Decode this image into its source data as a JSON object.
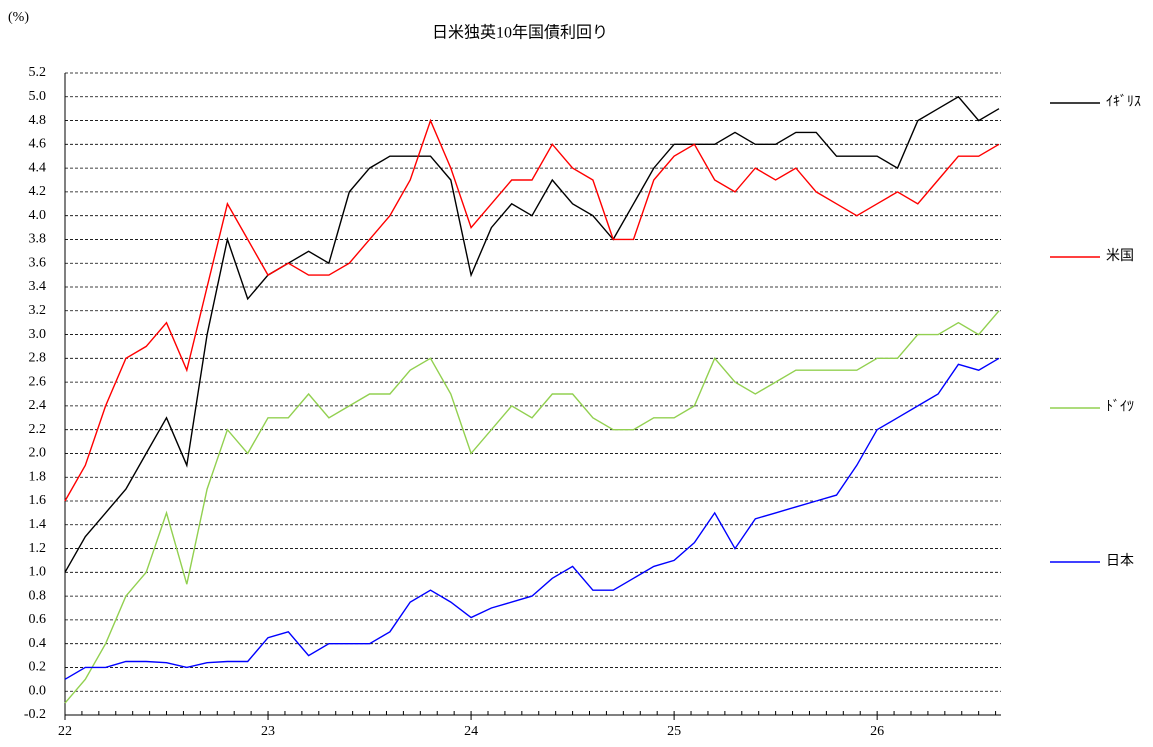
{
  "chart_data": {
    "type": "line",
    "title": "日米独英10年国債利回り",
    "y_label": "(%)",
    "x": [
      22.0,
      22.1,
      22.2,
      22.3,
      22.4,
      22.5,
      22.6,
      22.7,
      22.8,
      22.9,
      23.0,
      23.1,
      23.2,
      23.3,
      23.4,
      23.5,
      23.6,
      23.7,
      23.8,
      23.9,
      24.0,
      24.1,
      24.2,
      24.3,
      24.4,
      24.5,
      24.6,
      24.7,
      24.8,
      24.9,
      25.0,
      25.1,
      25.2,
      25.3,
      25.4,
      25.5,
      25.6,
      25.7,
      25.8,
      25.9,
      26.0,
      26.1,
      26.2,
      26.3,
      26.4,
      26.5,
      26.6
    ],
    "xlim": [
      22,
      26.61
    ],
    "xticks": [
      22,
      23,
      24,
      25,
      26
    ],
    "ylim": [
      -0.2,
      5.2
    ],
    "yticks": [
      -0.2,
      {
        "value": 0,
        "label": "0.0"
      },
      0.2,
      0.4,
      0.6,
      0.8,
      {
        "value": 1,
        "label": "1.0"
      },
      1.2,
      1.4,
      1.6,
      1.8,
      {
        "value": 2,
        "label": "2.0"
      },
      2.2,
      2.4,
      2.6,
      2.8,
      {
        "value": 3,
        "label": "3.0"
      },
      3.2,
      3.4,
      3.6,
      3.8,
      {
        "value": 4,
        "label": "4.0"
      },
      4.2,
      4.4,
      4.6,
      4.8,
      {
        "value": 5,
        "label": "5.0"
      },
      5.2
    ],
    "grid": true,
    "series": [
      {
        "name": "ｲｷﾞﾘｽ",
        "color": "#000000",
        "values": [
          1.0,
          1.3,
          1.5,
          1.7,
          2.0,
          2.3,
          1.9,
          3.0,
          3.8,
          3.3,
          3.5,
          3.6,
          3.7,
          3.6,
          4.2,
          4.4,
          4.5,
          4.5,
          4.5,
          4.3,
          3.5,
          3.9,
          4.1,
          4.0,
          4.3,
          4.1,
          4.0,
          3.8,
          4.1,
          4.4,
          4.6,
          4.6,
          4.6,
          4.7,
          4.6,
          4.6,
          4.7,
          4.7,
          4.5,
          4.5,
          4.5,
          4.4,
          4.8,
          4.9,
          5.0,
          4.8,
          4.9
        ]
      },
      {
        "name": "米国",
        "color": "#ff0000",
        "values": [
          1.6,
          1.9,
          2.4,
          2.8,
          2.9,
          3.1,
          2.7,
          3.4,
          4.1,
          3.8,
          3.5,
          3.6,
          3.5,
          3.5,
          3.6,
          3.8,
          4.0,
          4.3,
          4.8,
          4.4,
          3.9,
          4.1,
          4.3,
          4.3,
          4.6,
          4.4,
          4.3,
          3.8,
          3.8,
          4.3,
          4.5,
          4.6,
          4.3,
          4.2,
          4.4,
          4.3,
          4.4,
          4.2,
          4.1,
          4.0,
          4.1,
          4.2,
          4.1,
          4.3,
          4.5,
          4.5,
          4.6
        ]
      },
      {
        "name": "ﾄﾞｲﾂ",
        "color": "#92d050",
        "values": [
          -0.1,
          0.1,
          0.4,
          0.8,
          1.0,
          1.5,
          0.9,
          1.7,
          2.2,
          2.0,
          2.3,
          2.3,
          2.5,
          2.3,
          2.4,
          2.5,
          2.5,
          2.7,
          2.8,
          2.5,
          2.0,
          2.2,
          2.4,
          2.3,
          2.5,
          2.5,
          2.3,
          2.2,
          2.2,
          2.3,
          2.3,
          2.4,
          2.8,
          2.6,
          2.5,
          2.6,
          2.7,
          2.7,
          2.7,
          2.7,
          2.8,
          2.8,
          3.0,
          3.0,
          3.1,
          3.0,
          3.2
        ]
      },
      {
        "name": "日本",
        "color": "#0000ff",
        "values": [
          0.1,
          0.2,
          0.2,
          0.25,
          0.25,
          0.24,
          0.2,
          0.24,
          0.25,
          0.25,
          0.45,
          0.5,
          0.3,
          0.4,
          0.4,
          0.4,
          0.5,
          0.75,
          0.85,
          0.75,
          0.62,
          0.7,
          0.75,
          0.8,
          0.95,
          1.05,
          0.85,
          0.85,
          0.95,
          1.05,
          1.1,
          1.25,
          1.5,
          1.2,
          1.45,
          1.5,
          1.55,
          1.6,
          1.65,
          1.9,
          2.2,
          2.3,
          2.4,
          2.5,
          2.75,
          2.7,
          2.8
        ]
      }
    ]
  }
}
